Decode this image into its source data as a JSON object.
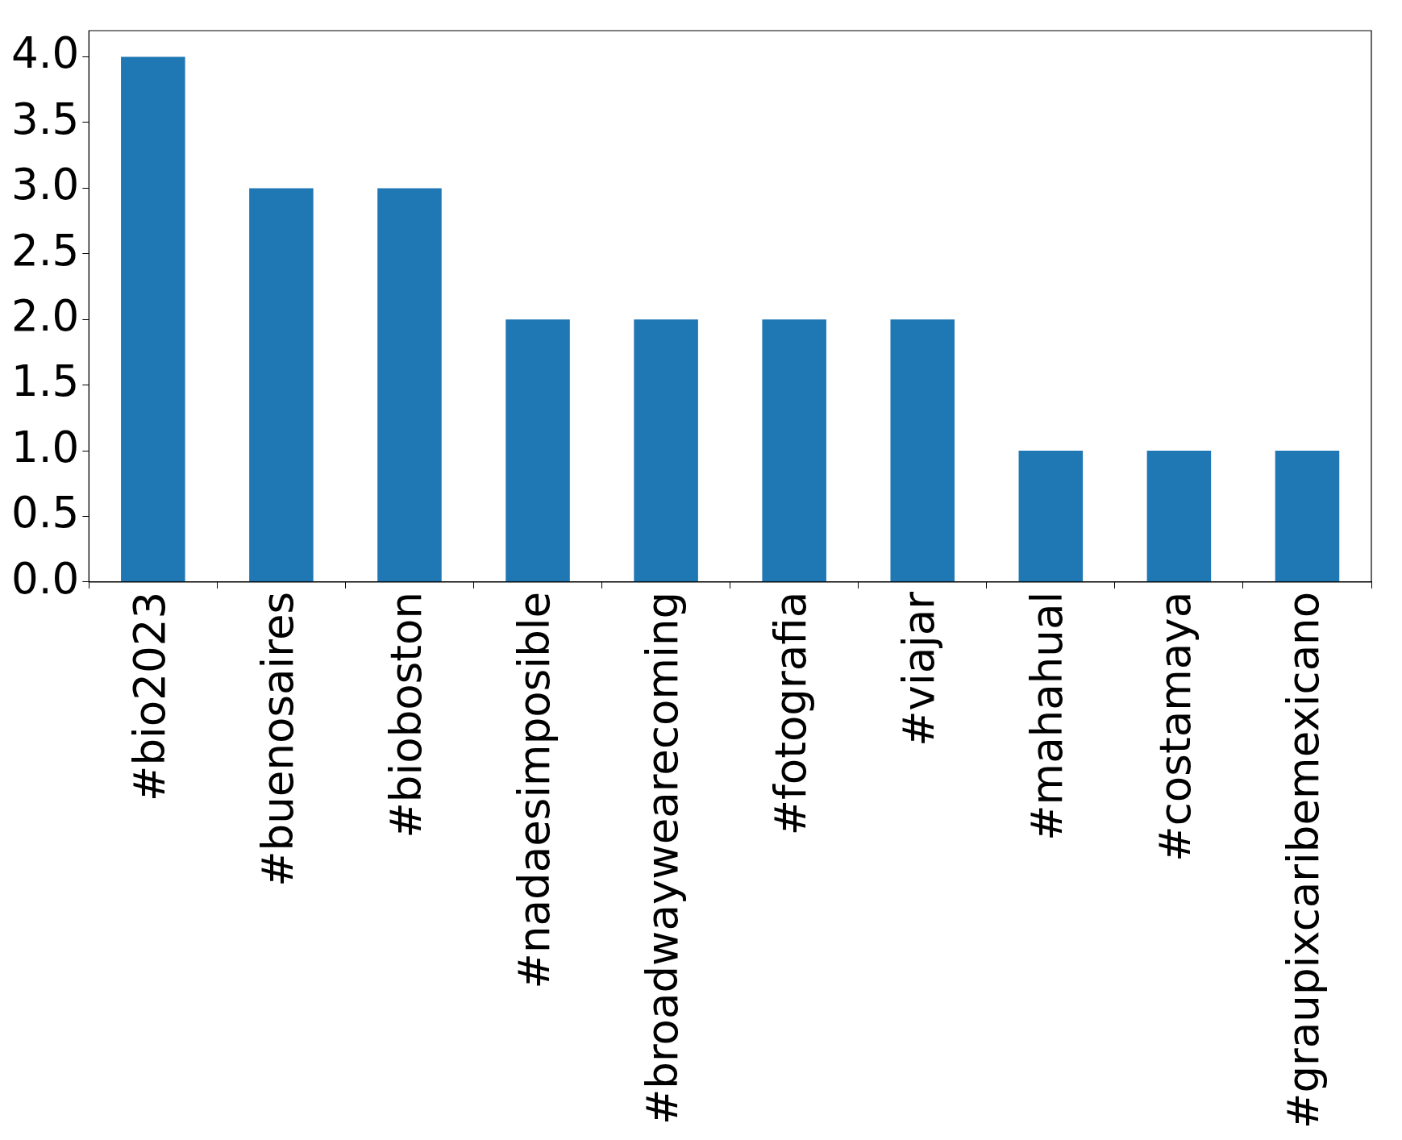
{
  "chart_data": {
    "type": "bar",
    "categories": [
      "#bio2023",
      "#buenosaires",
      "#bioboston",
      "#nadaesimposible",
      "#broadwaywearecoming",
      "#fotografia",
      "#viajar",
      "#mahahual",
      "#costamaya",
      "#graupixcaribemexicano"
    ],
    "values": [
      4,
      3,
      3,
      2,
      2,
      2,
      2,
      1,
      1,
      1
    ],
    "color": "#1f77b4",
    "ylim": [
      0,
      4.2
    ],
    "yticks": [
      {
        "value": 0,
        "label": "0.0"
      },
      {
        "value": 0.5,
        "label": "0.5"
      },
      {
        "value": 1,
        "label": "1.0"
      },
      {
        "value": 1.5,
        "label": "1.5"
      },
      {
        "value": 2,
        "label": "2.0"
      },
      {
        "value": 2.5,
        "label": "2.5"
      },
      {
        "value": 3,
        "label": "3.0"
      },
      {
        "value": 3.5,
        "label": "3.5"
      },
      {
        "value": 4,
        "label": "4.0"
      }
    ],
    "grid": false,
    "legend": false
  }
}
